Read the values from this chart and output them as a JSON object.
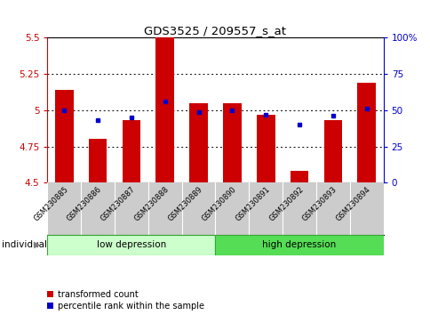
{
  "title": "GDS3525 / 209557_s_at",
  "samples": [
    "GSM230885",
    "GSM230886",
    "GSM230887",
    "GSM230888",
    "GSM230889",
    "GSM230890",
    "GSM230891",
    "GSM230892",
    "GSM230893",
    "GSM230894"
  ],
  "transformed_count": [
    5.14,
    4.8,
    4.93,
    5.5,
    5.05,
    5.05,
    4.97,
    4.58,
    4.93,
    5.19
  ],
  "percentile_rank": [
    50,
    43,
    45,
    56,
    49,
    50,
    47,
    40,
    46,
    51
  ],
  "ylim_left": [
    4.5,
    5.5
  ],
  "ylim_right": [
    0,
    100
  ],
  "yticks_left": [
    4.5,
    4.75,
    5.0,
    5.25,
    5.5
  ],
  "ytick_labels_left": [
    "4.5",
    "4.75",
    "5",
    "5.25",
    "5.5"
  ],
  "yticks_right": [
    0,
    25,
    50,
    75,
    100
  ],
  "ytick_labels_right": [
    "0",
    "25",
    "50",
    "75",
    "100%"
  ],
  "hlines": [
    4.75,
    5.0,
    5.25
  ],
  "bar_color": "#cc0000",
  "dot_color": "#0000cc",
  "bar_width": 0.55,
  "baseline": 4.5,
  "group1_label": "low depression",
  "group2_label": "high depression",
  "group1_color": "#ccffcc",
  "group2_color": "#55dd55",
  "individual_label": "individual",
  "legend_tc_label": "transformed count",
  "legend_pr_label": "percentile rank within the sample",
  "left_axis_color": "#cc0000",
  "right_axis_color": "#0000cc",
  "bg_color": "#ffffff",
  "ticklabel_bg_color": "#cccccc",
  "n_low": 5,
  "n_high": 5
}
